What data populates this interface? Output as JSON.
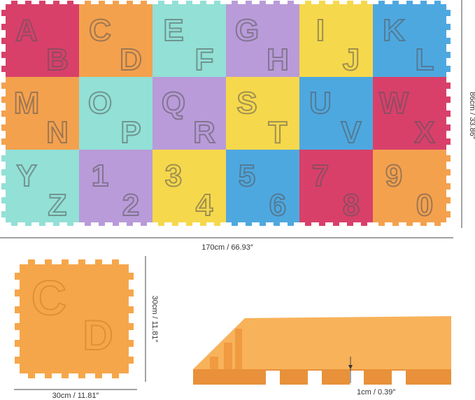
{
  "mat": {
    "tiles": [
      [
        {
          "letters": [
            "A",
            "B"
          ],
          "color": "#d8406a"
        },
        {
          "letters": [
            "C",
            "D"
          ],
          "color": "#f4a14e"
        },
        {
          "letters": [
            "E",
            "F"
          ],
          "color": "#92e0d6"
        },
        {
          "letters": [
            "G",
            "H"
          ],
          "color": "#b99bd9"
        },
        {
          "letters": [
            "I",
            "J"
          ],
          "color": "#f6d84c"
        },
        {
          "letters": [
            "K",
            "L"
          ],
          "color": "#4ea8e0"
        }
      ],
      [
        {
          "letters": [
            "M",
            "N"
          ],
          "color": "#f4a14e"
        },
        {
          "letters": [
            "O",
            "P"
          ],
          "color": "#92e0d6"
        },
        {
          "letters": [
            "Q",
            "R"
          ],
          "color": "#b99bd9"
        },
        {
          "letters": [
            "S",
            "T"
          ],
          "color": "#f6d84c"
        },
        {
          "letters": [
            "U",
            "V"
          ],
          "color": "#4ea8e0"
        },
        {
          "letters": [
            "W",
            "X"
          ],
          "color": "#d8406a"
        }
      ],
      [
        {
          "letters": [
            "Y",
            "Z"
          ],
          "color": "#92e0d6"
        },
        {
          "letters": [
            "1",
            "2"
          ],
          "color": "#b99bd9"
        },
        {
          "letters": [
            "3",
            "4"
          ],
          "color": "#f6d84c"
        },
        {
          "letters": [
            "5",
            "6"
          ],
          "color": "#4ea8e0"
        },
        {
          "letters": [
            "7",
            "8"
          ],
          "color": "#d8406a"
        },
        {
          "letters": [
            "9",
            "0"
          ],
          "color": "#f4a14e"
        }
      ]
    ],
    "width_label": "170cm / 66.93″",
    "height_label": "86cm / 33.86″"
  },
  "single_tile": {
    "letters": [
      "C",
      "D"
    ],
    "width_label": "30cm / 11.81″",
    "height_label": "30cm / 11.81″"
  },
  "thickness": {
    "label": "1cm / 0.39″"
  }
}
